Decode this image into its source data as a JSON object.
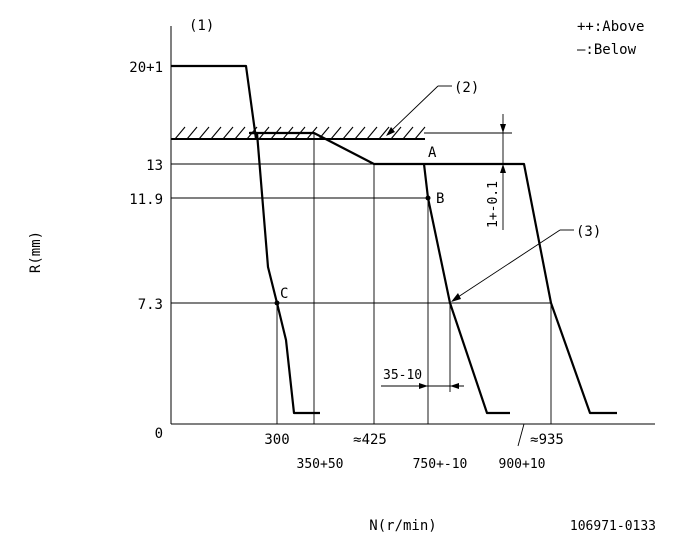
{
  "labels": {
    "figure_marker": "(1)",
    "legend_above": "++:Above",
    "legend_below": "—:Below",
    "callout_2": "(2)",
    "callout_3": "(3)",
    "point_a": "A",
    "point_b": "B",
    "point_c": "C",
    "y_axis_label": "R(mm)",
    "x_axis_label": "N(r/min)",
    "drawing_number": "106971-0133",
    "tolerance_right": "1+-0.1",
    "offset_dim": "35-10"
  },
  "y_ticks": [
    "20+1",
    "13",
    "11.9",
    "7.3",
    "0"
  ],
  "x_ticks": [
    "300",
    "350+50",
    "≈425",
    "750+-10",
    "900+10",
    "≈935"
  ],
  "colors": {
    "line": "#000000",
    "background": "#ffffff"
  }
}
